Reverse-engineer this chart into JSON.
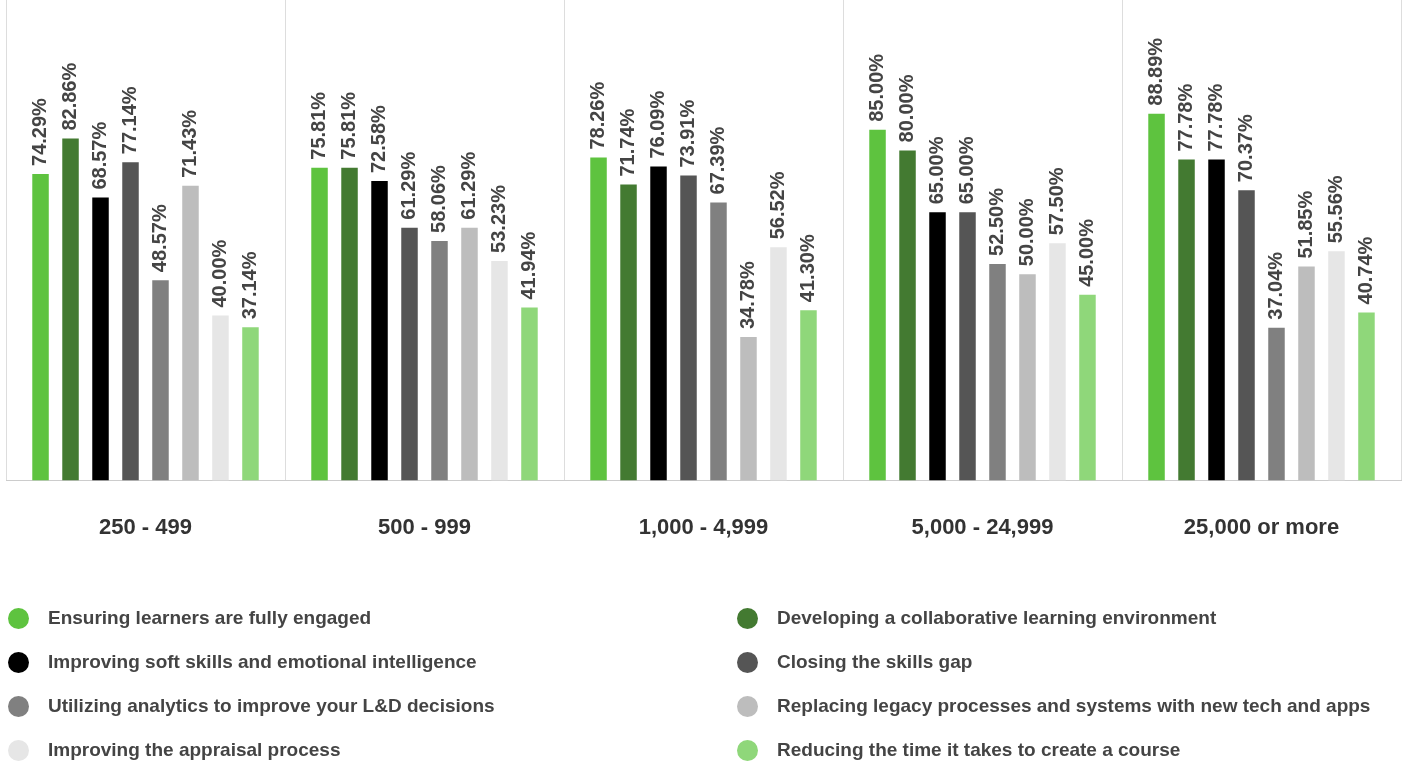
{
  "chart_data": {
    "type": "bar",
    "categories": [
      "250 - 499",
      "500 - 999",
      "1,000 - 4,999",
      "5,000 - 24,999",
      "25,000 or more"
    ],
    "series": [
      {
        "name": "Ensuring learners are fully engaged",
        "color": "#5ec33f",
        "values": [
          74.29,
          75.81,
          78.26,
          85.0,
          88.89
        ],
        "value_labels": [
          "74.29%",
          "75.81%",
          "78.26%",
          "85.00%",
          "88.89%"
        ]
      },
      {
        "name": "Developing a collaborative learning environment",
        "color": "#437a31",
        "values": [
          82.86,
          75.81,
          71.74,
          80.0,
          77.78
        ],
        "value_labels": [
          "82.86%",
          "75.81%",
          "71.74%",
          "80.00%",
          "77.78%"
        ]
      },
      {
        "name": "Improving soft skills and emotional intelligence",
        "color": "#000000",
        "values": [
          68.57,
          72.58,
          76.09,
          65.0,
          77.78
        ],
        "value_labels": [
          "68.57%",
          "72.58%",
          "76.09%",
          "65.00%",
          "77.78%"
        ]
      },
      {
        "name": "Closing the skills gap",
        "color": "#555555",
        "values": [
          77.14,
          61.29,
          73.91,
          65.0,
          70.37
        ],
        "value_labels": [
          "77.14%",
          "61.29%",
          "73.91%",
          "65.00%",
          "70.37%"
        ]
      },
      {
        "name": "Utilizing analytics to improve your L&D decisions",
        "color": "#808080",
        "values": [
          48.57,
          58.06,
          67.39,
          52.5,
          37.04
        ],
        "value_labels": [
          "48.57%",
          "58.06%",
          "67.39%",
          "52.50%",
          "37.04%"
        ]
      },
      {
        "name": "Replacing legacy processes and systems with new tech and apps",
        "color": "#bdbdbd",
        "values": [
          71.43,
          61.29,
          34.78,
          50.0,
          51.85
        ],
        "value_labels": [
          "71.43%",
          "61.29%",
          "34.78%",
          "50.00%",
          "51.85%"
        ]
      },
      {
        "name": "Improving the appraisal process",
        "color": "#e6e6e6",
        "values": [
          40.0,
          53.23,
          56.52,
          57.5,
          55.56
        ],
        "value_labels": [
          "40.00%",
          "53.23%",
          "56.52%",
          "57.50%",
          "55.56%"
        ]
      },
      {
        "name": "Reducing the time it takes to create a course",
        "color": "#8fd77a",
        "values": [
          37.14,
          41.94,
          41.3,
          45.0,
          40.74
        ],
        "value_labels": [
          "37.14%",
          "41.94%",
          "41.30%",
          "45.00%",
          "40.74%"
        ]
      }
    ],
    "grid": "x",
    "legend": "bottom"
  }
}
